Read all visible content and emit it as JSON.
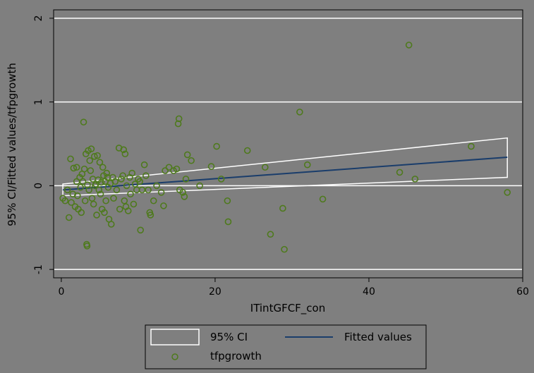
{
  "chart_data": {
    "type": "scatter",
    "xlabel": "ITintGFCF_con",
    "ylabel": "95% CI/Fitted values/tfpgrowth",
    "xlim": [
      -1,
      60
    ],
    "ylim": [
      -1.1,
      2.1
    ],
    "x_ticks": [
      0,
      20,
      40,
      60
    ],
    "y_ticks": [
      -1,
      0,
      1,
      2
    ],
    "x_tick_labels": [
      "0",
      "20",
      "40",
      "60"
    ],
    "y_tick_labels": [
      "-1",
      "0",
      "1",
      "2"
    ],
    "grid": "horizontal",
    "legend_position": "bottom",
    "colors": {
      "background": "#7f7f7f",
      "plot": "#7f7f7f",
      "grid": "#ffffff",
      "ci": "#ffffff",
      "fit": "#1a3d6b",
      "points": "#4e7a1c",
      "legend_bg": "#7f7f7f"
    },
    "legend": [
      {
        "key": "ci",
        "label": "95% CI"
      },
      {
        "key": "fit",
        "label": "Fitted values"
      },
      {
        "key": "points",
        "label": "tfpgrowth"
      }
    ],
    "fitted_line": {
      "x": [
        0.2,
        58
      ],
      "y": [
        -0.05,
        0.34
      ]
    },
    "ci_band": {
      "x": [
        0.2,
        58
      ],
      "upper": [
        0.02,
        0.57
      ],
      "lower": [
        -0.12,
        0.1
      ]
    },
    "series": [
      {
        "name": "tfpgrowth",
        "points": [
          [
            0.2,
            -0.15
          ],
          [
            0.5,
            -0.18
          ],
          [
            0.8,
            -0.05
          ],
          [
            1.0,
            -0.38
          ],
          [
            1.2,
            0.32
          ],
          [
            1.3,
            -0.2
          ],
          [
            1.5,
            -0.1
          ],
          [
            1.6,
            0.21
          ],
          [
            1.8,
            -0.25
          ],
          [
            2.0,
            0.22
          ],
          [
            2.0,
            0.05
          ],
          [
            2.1,
            -0.12
          ],
          [
            2.2,
            -0.28
          ],
          [
            2.4,
            0.1
          ],
          [
            2.5,
            -0.02
          ],
          [
            2.6,
            -0.32
          ],
          [
            2.7,
            0.14
          ],
          [
            2.8,
            0.05
          ],
          [
            2.9,
            0.76
          ],
          [
            3.0,
            0.2
          ],
          [
            3.1,
            -0.18
          ],
          [
            3.2,
            0.38
          ],
          [
            3.3,
            -0.7
          ],
          [
            3.35,
            -0.72
          ],
          [
            3.4,
            0.01
          ],
          [
            3.5,
            0.42
          ],
          [
            3.6,
            -0.05
          ],
          [
            3.7,
            0.3
          ],
          [
            3.8,
            0.18
          ],
          [
            3.9,
            0.44
          ],
          [
            4.0,
            -0.15
          ],
          [
            4.1,
            0.08
          ],
          [
            4.2,
            -0.22
          ],
          [
            4.3,
            0.35
          ],
          [
            4.4,
            0.0
          ],
          [
            4.5,
            0.02
          ],
          [
            4.6,
            -0.35
          ],
          [
            4.7,
            0.36
          ],
          [
            4.8,
            0.07
          ],
          [
            4.9,
            -0.05
          ],
          [
            5.0,
            0.28
          ],
          [
            5.1,
            -0.1
          ],
          [
            5.2,
            0.04
          ],
          [
            5.3,
            -0.28
          ],
          [
            5.4,
            0.22
          ],
          [
            5.5,
            0.12
          ],
          [
            5.6,
            -0.32
          ],
          [
            5.7,
            0.05
          ],
          [
            5.8,
            -0.18
          ],
          [
            5.9,
            0.15
          ],
          [
            6.0,
            0.1
          ],
          [
            6.1,
            -0.02
          ],
          [
            6.2,
            -0.4
          ],
          [
            6.4,
            0.03
          ],
          [
            6.5,
            -0.46
          ],
          [
            6.7,
            0.1
          ],
          [
            6.8,
            -0.15
          ],
          [
            7.0,
            0.05
          ],
          [
            7.2,
            -0.05
          ],
          [
            7.5,
            0.45
          ],
          [
            7.6,
            -0.28
          ],
          [
            7.8,
            0.08
          ],
          [
            8.0,
            0.12
          ],
          [
            8.1,
            0.43
          ],
          [
            8.2,
            -0.18
          ],
          [
            8.3,
            0.38
          ],
          [
            8.4,
            -0.25
          ],
          [
            8.5,
            0.0
          ],
          [
            8.7,
            -0.3
          ],
          [
            8.9,
            0.1
          ],
          [
            9.0,
            -0.1
          ],
          [
            9.2,
            0.15
          ],
          [
            9.4,
            -0.22
          ],
          [
            9.6,
            0.02
          ],
          [
            9.8,
            -0.05
          ],
          [
            10.0,
            0.08
          ],
          [
            10.2,
            0.05
          ],
          [
            10.3,
            -0.53
          ],
          [
            10.5,
            -0.05
          ],
          [
            10.8,
            0.25
          ],
          [
            11.0,
            0.12
          ],
          [
            11.3,
            -0.05
          ],
          [
            11.5,
            -0.32
          ],
          [
            11.6,
            -0.35
          ],
          [
            12.0,
            -0.18
          ],
          [
            12.4,
            0.0
          ],
          [
            13.0,
            -0.08
          ],
          [
            13.3,
            -0.24
          ],
          [
            13.5,
            0.18
          ],
          [
            14.0,
            0.22
          ],
          [
            14.6,
            0.18
          ],
          [
            15.0,
            0.2
          ],
          [
            15.2,
            0.74
          ],
          [
            15.3,
            0.8
          ],
          [
            15.4,
            -0.05
          ],
          [
            15.8,
            -0.08
          ],
          [
            16.0,
            -0.13
          ],
          [
            16.2,
            0.08
          ],
          [
            16.4,
            0.37
          ],
          [
            16.9,
            0.3
          ],
          [
            18.0,
            0.0
          ],
          [
            19.5,
            0.23
          ],
          [
            20.2,
            0.47
          ],
          [
            20.8,
            0.08
          ],
          [
            21.6,
            -0.18
          ],
          [
            21.7,
            -0.43
          ],
          [
            24.2,
            0.42
          ],
          [
            26.5,
            0.22
          ],
          [
            27.2,
            -0.58
          ],
          [
            28.8,
            -0.27
          ],
          [
            29.0,
            -0.76
          ],
          [
            31.0,
            0.88
          ],
          [
            32.0,
            0.25
          ],
          [
            34.0,
            -0.16
          ],
          [
            44.0,
            0.16
          ],
          [
            45.2,
            1.68
          ],
          [
            46.0,
            0.08
          ],
          [
            53.3,
            0.47
          ],
          [
            58.0,
            -0.08
          ]
        ]
      }
    ]
  }
}
